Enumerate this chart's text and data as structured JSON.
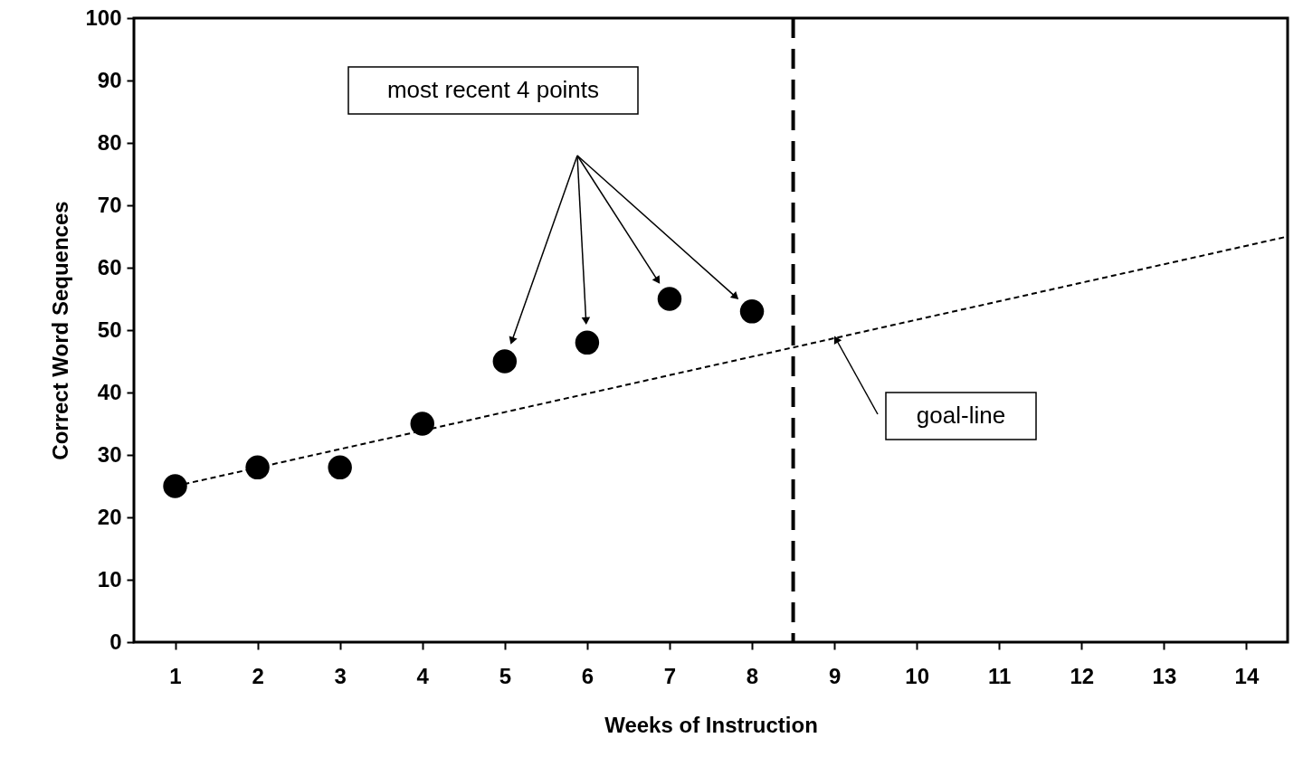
{
  "chart_data": {
    "type": "scatter",
    "xlabel": "Weeks of Instruction",
    "ylabel": "Correct Word Sequences",
    "xlim": [
      0.5,
      14.5
    ],
    "xticks": [
      1,
      2,
      3,
      4,
      5,
      6,
      7,
      8,
      9,
      10,
      11,
      12,
      13,
      14
    ],
    "ylim": [
      0,
      100
    ],
    "yticks": [
      0,
      10,
      20,
      30,
      40,
      50,
      60,
      70,
      80,
      90,
      100
    ],
    "grid": false,
    "legend": false,
    "marker": "circle",
    "series": [
      {
        "type": "scatter",
        "color": "#000000",
        "x": [
          1,
          2,
          3,
          4,
          5,
          6,
          7,
          8
        ],
        "values": [
          25,
          28,
          28,
          35,
          45,
          48,
          55,
          53
        ]
      },
      {
        "type": "line",
        "color": "#000000",
        "line_style": "dashed",
        "marker": "none",
        "x": [
          1,
          14.5
        ],
        "values": [
          25,
          65
        ]
      }
    ],
    "ref_lines": [
      {
        "axis": "x",
        "value": 8.5,
        "color": "#000000",
        "line_style": "dashed"
      }
    ],
    "annotations": [
      "most recent 4 points",
      "goal-line"
    ]
  }
}
